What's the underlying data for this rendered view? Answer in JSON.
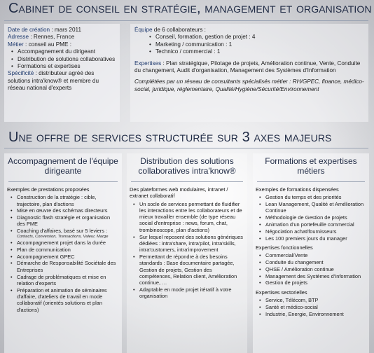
{
  "title": "Cabinet de conseil en stratégie, management et organisation",
  "identity": {
    "date_label": "Date de création",
    "date_value": " : mars 2011",
    "address_label": "Adresse",
    "address_value": " : Rennes, France",
    "trade_label": "Métier",
    "trade_value": " : conseil au PME :",
    "trade_items": [
      "Accompagnement du dirigeant",
      "Distribution de solutions collaboratives",
      "Formations et expertises"
    ],
    "specificity_label": "Spécificité",
    "specificity_value": " : distributeur agréé des solutions intra'know® et membre du réseau national d'experts"
  },
  "team": {
    "heading_label": "Équipe",
    "heading_value": " de 6 collaborateurs :",
    "items": [
      "Conseil, formation, gestion de projet : 4",
      "Marketing / communication : 1",
      "Technico / commercial : 1"
    ],
    "expertise_label": "Expertises",
    "expertise_value": " : Plan stratégique, Pilotage de projets, Amélioration continue, Vente, Conduite du changement, Audit d'organisation, Management des Systèmes d'Information",
    "network": "Complétées par un réseau de consultants spécialisés métier : RH/GPEC, finance, médico-social, juridique, réglementaire, Qualité/Hygiène/Sécurité/Environnement"
  },
  "offer_title": "Une offre de services structurée sur 3 axes majeurs",
  "col1": {
    "title": "Accompagnement de l'équipe dirigeante",
    "section": "Exemples de prestations proposées",
    "items": [
      "Construction de la stratégie : cible, trajectoire, plan d'actions",
      "Mise en œuvre des schémas directeurs",
      "Diagnostic flash stratégie et organisation des PME",
      "Coaching d'affaires, basé sur 5 leviers :",
      "Accompagnement projet dans la durée",
      "Plan de communication",
      "Accompagnement GPEC",
      "Démarche de Responsabilité Sociétale des Entreprises",
      "Cadrage de problématiques et mise en relation d'experts",
      "Préparation et animation de séminaires d'affaire, d'ateliers de travail en mode collaboratif (orientés solutions et plan d'actions)"
    ],
    "coaching_note": "Contacts, Conversion, Transactions, Valeur, Marge"
  },
  "col2": {
    "title": "Distribution des solutions collaboratives intra'know®",
    "section": "Des plateformes web modulaires, intranet / extranet collaboratif",
    "items": [
      "Un socle de services permettant de fluidifier les interactions entre les collaborateurs et de mieux travailler ensemble (de type réseau social d'entreprise : news, forum, chat, trombinoscope, plan d'actions)",
      "Sur lequel reposent des solutions génériques dédiées : intra'share, intra'pilot, intra'skills, intra'customers, intra'improvement",
      "Permettant de répondre à des besoins standards : Base documentaire partagée, Gestion de projets, Gestion des compétences, Relation client, Amélioration continue, …",
      "Adaptable en mode projet itératif à votre organisation"
    ]
  },
  "col3": {
    "title": "Formations et expertises métiers",
    "section_training": "Exemples de formations dispensées",
    "training": [
      "Gestion du temps et des priorités",
      "Lean Management, Qualité et Amélioration Continue",
      "Méthodologie de Gestion de projets",
      "Animation d'un portefeuille commercial",
      "Négociation achat/fournisseurs",
      "Les 100 premiers jours du manager"
    ],
    "section_functional": "Expertises fonctionnelles",
    "functional": [
      "Commercial/Vente",
      "Conduite du changement",
      "QHSE / Amélioration continue",
      "Management des Systèmes d'Information",
      "Gestion de projets"
    ],
    "section_sector": "Expertises sectorielles",
    "sector": [
      "Service, Télécom, BTP",
      "Santé et médico-social",
      "Industrie, Energie, Environnement"
    ]
  }
}
